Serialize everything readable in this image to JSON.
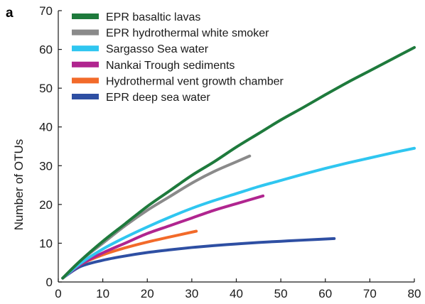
{
  "panel_label": "a",
  "chart_data": {
    "type": "line",
    "title": "",
    "xlabel": "",
    "ylabel": "Number of OTUs",
    "xlim": [
      0,
      80
    ],
    "ylim": [
      0,
      70
    ],
    "xticks": [
      0,
      10,
      20,
      30,
      40,
      50,
      60,
      70,
      80
    ],
    "yticks": [
      0,
      10,
      20,
      30,
      40,
      50,
      60,
      70
    ],
    "grid": false,
    "legend_position": "top-left",
    "series": [
      {
        "name": "EPR basaltic lavas",
        "color": "#1e7a3c",
        "x": [
          1,
          5,
          10,
          15,
          20,
          25,
          30,
          35,
          40,
          45,
          50,
          55,
          60,
          65,
          70,
          75,
          80
        ],
        "y": [
          1,
          5.5,
          10.5,
          15,
          19.5,
          23.5,
          27.5,
          31,
          34.8,
          38.3,
          41.8,
          45,
          48.3,
          51.5,
          54.5,
          57.5,
          60.5
        ]
      },
      {
        "name": "EPR hydrothermal white smoker",
        "color": "#8a8a8a",
        "x": [
          1,
          5,
          10,
          15,
          20,
          25,
          30,
          35,
          40,
          43
        ],
        "y": [
          1,
          5.5,
          10,
          14.5,
          18.5,
          22,
          25.5,
          28.5,
          31,
          32.5
        ]
      },
      {
        "name": "Sargasso Sea water",
        "color": "#2fc6f0",
        "x": [
          1,
          5,
          10,
          15,
          20,
          25,
          30,
          35,
          40,
          45,
          50,
          55,
          60,
          65,
          70,
          75,
          80
        ],
        "y": [
          1,
          4.8,
          8.5,
          11.5,
          14.2,
          16.7,
          19,
          21,
          22.8,
          24.6,
          26.2,
          27.8,
          29.3,
          30.7,
          32,
          33.3,
          34.5
        ]
      },
      {
        "name": "Nankai Trough sediments",
        "color": "#b0258f",
        "x": [
          1,
          5,
          10,
          15,
          20,
          25,
          30,
          35,
          40,
          46
        ],
        "y": [
          1,
          4.5,
          7.5,
          10,
          12.5,
          14.5,
          16.5,
          18.5,
          20.2,
          22.2
        ]
      },
      {
        "name": "Hydrothermal vent growth chamber",
        "color": "#f26a2a",
        "x": [
          1,
          5,
          10,
          15,
          20,
          25,
          31
        ],
        "y": [
          1,
          4.5,
          7,
          8.8,
          10.3,
          11.6,
          13.1
        ]
      },
      {
        "name": "EPR deep sea water",
        "color": "#2e4fa3",
        "x": [
          1,
          5,
          10,
          15,
          20,
          25,
          30,
          35,
          40,
          45,
          50,
          55,
          62
        ],
        "y": [
          1,
          4,
          5.6,
          6.7,
          7.6,
          8.3,
          8.9,
          9.4,
          9.8,
          10.2,
          10.5,
          10.8,
          11.2
        ]
      }
    ]
  }
}
